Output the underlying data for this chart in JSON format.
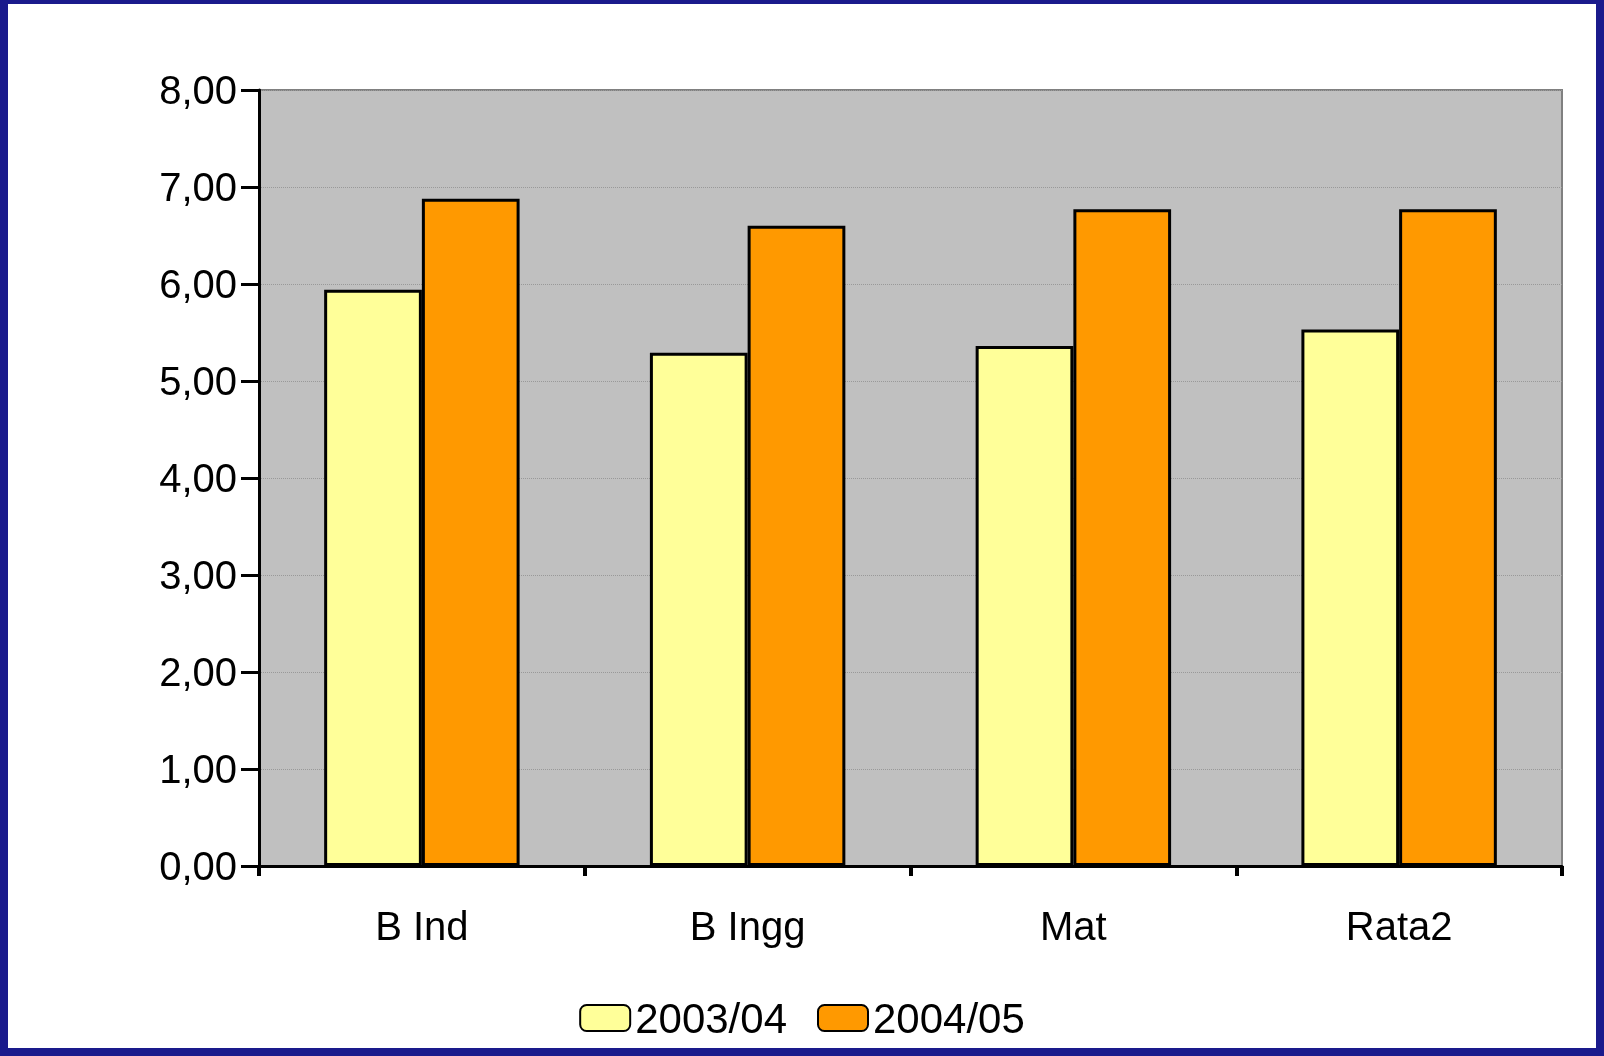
{
  "chart_data": {
    "type": "bar",
    "categories": [
      "B Ind",
      "B Ingg",
      "Mat",
      "Rata2"
    ],
    "series": [
      {
        "name": "2003/04",
        "color": "#ffff99",
        "values": [
          5.94,
          5.29,
          5.36,
          5.53
        ]
      },
      {
        "name": "2004/05",
        "color": "#ff9900",
        "values": [
          6.88,
          6.6,
          6.77,
          6.77
        ]
      }
    ],
    "ylim": [
      0,
      8
    ],
    "yticks": [
      {
        "value": 0,
        "label": "0,00"
      },
      {
        "value": 1,
        "label": "1,00"
      },
      {
        "value": 2,
        "label": "2,00"
      },
      {
        "value": 3,
        "label": "3,00"
      },
      {
        "value": 4,
        "label": "4,00"
      },
      {
        "value": 5,
        "label": "5,00"
      },
      {
        "value": 6,
        "label": "6,00"
      },
      {
        "value": 7,
        "label": "7,00"
      },
      {
        "value": 8,
        "label": "8,00"
      }
    ],
    "grid": "y",
    "legend": "bottom"
  }
}
